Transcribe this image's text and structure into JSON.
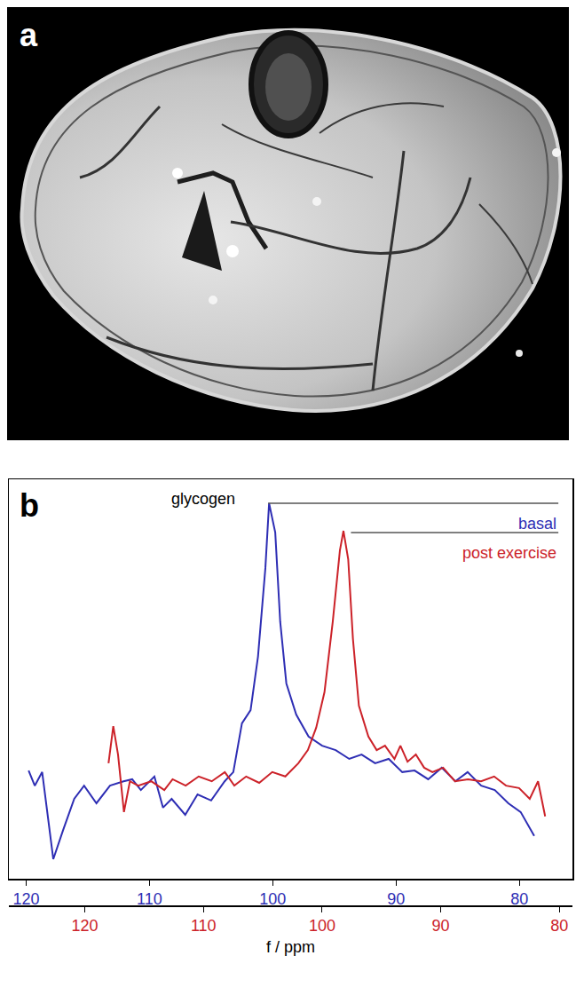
{
  "image_panel": {
    "label": "a"
  },
  "chart_data": {
    "type": "line",
    "panel_label": "b",
    "x_label": "f / ppm",
    "annotations": [
      "glycogen"
    ],
    "grid": false,
    "tick_labels": "x",
    "xlim": [
      121.4,
      75.7
    ],
    "xticks": [
      120,
      110,
      100,
      90,
      80
    ],
    "x2lim": [
      126.4,
      78.9
    ],
    "x2ticks": [
      120,
      110,
      100,
      90,
      80
    ],
    "ylim": [
      0,
      10
    ],
    "series": [
      {
        "name": "basal",
        "color": "#2e2eb4",
        "axis": "x",
        "x": [
          119.8,
          119.3,
          118.7,
          117.8,
          117.0,
          116.1,
          115.3,
          114.3,
          113.2,
          112.1,
          111.4,
          110.7,
          109.6,
          108.9,
          108.2,
          107.1,
          106.1,
          105.0,
          103.9,
          103.2,
          102.5,
          101.8,
          101.2,
          100.6,
          100.3,
          99.8,
          99.4,
          98.9,
          98.1,
          97.1,
          96.0,
          94.9,
          93.8,
          92.8,
          91.7,
          90.6,
          89.5,
          88.5,
          87.4,
          86.3,
          85.2,
          84.2,
          83.1,
          82.0,
          80.9,
          79.9,
          78.8
        ],
        "values": [
          2.71,
          2.33,
          2.67,
          0.49,
          1.22,
          2.0,
          2.33,
          1.89,
          2.33,
          2.44,
          2.49,
          2.22,
          2.56,
          1.78,
          2.0,
          1.6,
          2.11,
          1.96,
          2.44,
          2.67,
          3.89,
          4.22,
          5.56,
          7.78,
          9.4,
          8.67,
          6.44,
          4.89,
          4.11,
          3.56,
          3.33,
          3.22,
          3.0,
          3.11,
          2.89,
          3.0,
          2.67,
          2.71,
          2.49,
          2.78,
          2.44,
          2.67,
          2.33,
          2.22,
          1.89,
          1.67,
          1.07
        ]
      },
      {
        "name": "post exercise",
        "color": "#cc2229",
        "axis": "x2",
        "x": [
          118.0,
          117.6,
          117.2,
          116.7,
          116.2,
          115.5,
          114.4,
          113.3,
          112.6,
          111.5,
          110.4,
          109.3,
          108.2,
          107.4,
          106.4,
          105.3,
          104.2,
          103.1,
          102.0,
          101.2,
          100.5,
          99.8,
          99.1,
          98.5,
          98.2,
          97.8,
          97.4,
          96.9,
          96.1,
          95.4,
          94.7,
          93.9,
          93.4,
          92.8,
          92.1,
          91.4,
          90.7,
          89.8,
          88.8,
          87.7,
          86.6,
          85.5,
          84.5,
          83.4,
          82.5,
          81.8,
          81.2
        ],
        "values": [
          2.89,
          3.82,
          3.11,
          1.67,
          2.44,
          2.33,
          2.44,
          2.22,
          2.49,
          2.33,
          2.56,
          2.44,
          2.67,
          2.33,
          2.56,
          2.4,
          2.67,
          2.56,
          2.89,
          3.22,
          3.78,
          4.67,
          6.44,
          8.22,
          8.71,
          8.0,
          6.0,
          4.33,
          3.56,
          3.22,
          3.33,
          3.0,
          3.33,
          2.93,
          3.11,
          2.78,
          2.67,
          2.78,
          2.44,
          2.49,
          2.44,
          2.56,
          2.33,
          2.27,
          2.0,
          2.44,
          1.56
        ]
      }
    ]
  }
}
